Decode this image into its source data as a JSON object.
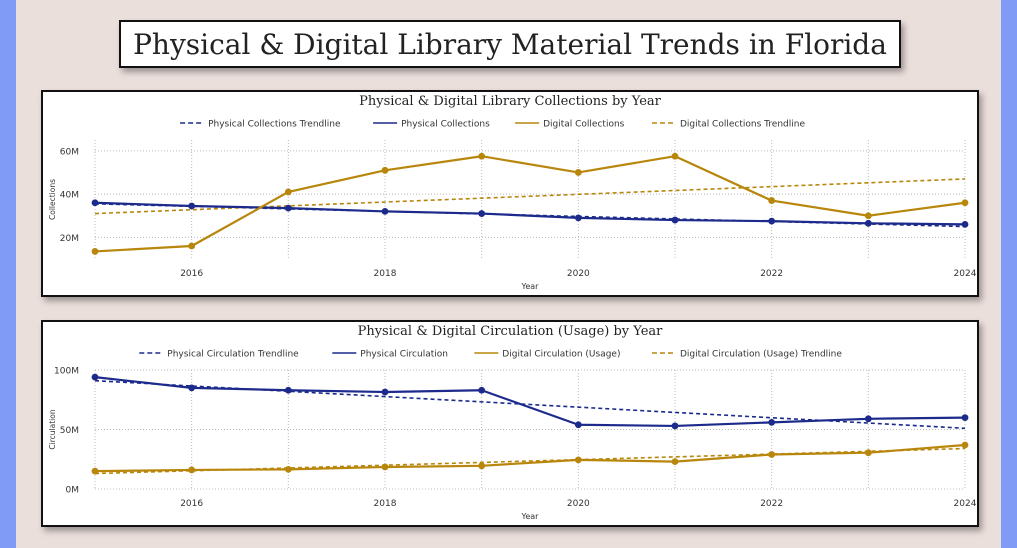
{
  "page": {
    "title": "Physical & Digital Library Material Trends in Florida",
    "colors": {
      "physical": "#1c2a8c",
      "digital": "#b8860b",
      "background": "#ebdfdc",
      "sidebar": "#7f9bf5"
    }
  },
  "chart_data": [
    {
      "type": "line",
      "title": "Physical & Digital Library Collections by Year",
      "xlabel": "Year",
      "ylabel": "Collections",
      "xlim": [
        2015,
        2024
      ],
      "ylim": [
        10,
        65
      ],
      "x_ticks": [
        2016,
        2018,
        2020,
        2022,
        2024
      ],
      "y_ticks": [
        20,
        40,
        60
      ],
      "y_tick_labels": [
        "20M",
        "40M",
        "60M"
      ],
      "grid": true,
      "legend_position": "top",
      "legend": [
        {
          "label": "Physical Collections Trendline",
          "color": "#1c2a8c",
          "dashed": true
        },
        {
          "label": "Physical Collections",
          "color": "#1c2a8c",
          "dashed": false
        },
        {
          "label": "Digital Collections",
          "color": "#b8860b",
          "dashed": false
        },
        {
          "label": "Digital Collections Trendline",
          "color": "#b8860b",
          "dashed": true
        }
      ],
      "x": [
        2015,
        2016,
        2017,
        2018,
        2019,
        2020,
        2021,
        2022,
        2023,
        2024
      ],
      "series": [
        {
          "name": "Physical Collections",
          "color": "#1c2a8c",
          "values": [
            36,
            34.5,
            33.5,
            32,
            31,
            29,
            28,
            27.5,
            26.5,
            26
          ]
        },
        {
          "name": "Digital Collections",
          "color": "#b8860b",
          "values": [
            13.5,
            16,
            41,
            51,
            57.5,
            50,
            57.5,
            37,
            30,
            36
          ]
        }
      ],
      "trendlines": [
        {
          "name": "Physical Collections Trendline",
          "color": "#1c2a8c",
          "values": [
            35.5,
            25
          ]
        },
        {
          "name": "Digital Collections Trendline",
          "color": "#b8860b",
          "values": [
            31,
            47
          ]
        }
      ]
    },
    {
      "type": "line",
      "title": "Physical & Digital Circulation (Usage) by Year",
      "xlabel": "Year",
      "ylabel": "Circulation",
      "xlim": [
        2015,
        2024
      ],
      "ylim": [
        0,
        100
      ],
      "x_ticks": [
        2016,
        2018,
        2020,
        2022,
        2024
      ],
      "y_ticks": [
        0,
        50,
        100
      ],
      "y_tick_labels": [
        "0M",
        "50M",
        "100M"
      ],
      "grid": true,
      "legend_position": "top",
      "legend": [
        {
          "label": "Physical Circulation Trendline",
          "color": "#1c2a8c",
          "dashed": true
        },
        {
          "label": "Physical Circulation",
          "color": "#1c2a8c",
          "dashed": false
        },
        {
          "label": "Digital Circulation (Usage)",
          "color": "#b8860b",
          "dashed": false
        },
        {
          "label": "Digital Circulation (Usage) Trendline",
          "color": "#b8860b",
          "dashed": true
        }
      ],
      "x": [
        2015,
        2016,
        2017,
        2018,
        2019,
        2020,
        2021,
        2022,
        2023,
        2024
      ],
      "series": [
        {
          "name": "Physical Circulation",
          "color": "#1c2a8c",
          "values": [
            94,
            85,
            83,
            81.5,
            83,
            54,
            53,
            56,
            59,
            60
          ]
        },
        {
          "name": "Digital Circulation (Usage)",
          "color": "#b8860b",
          "values": [
            15,
            16,
            16.5,
            18.5,
            19.5,
            24.5,
            23,
            29,
            30.5,
            37
          ]
        }
      ],
      "trendlines": [
        {
          "name": "Physical Circulation Trendline",
          "color": "#1c2a8c",
          "values": [
            91,
            51
          ]
        },
        {
          "name": "Digital Circulation (Usage) Trendline",
          "color": "#b8860b",
          "values": [
            13,
            34
          ]
        }
      ]
    }
  ]
}
